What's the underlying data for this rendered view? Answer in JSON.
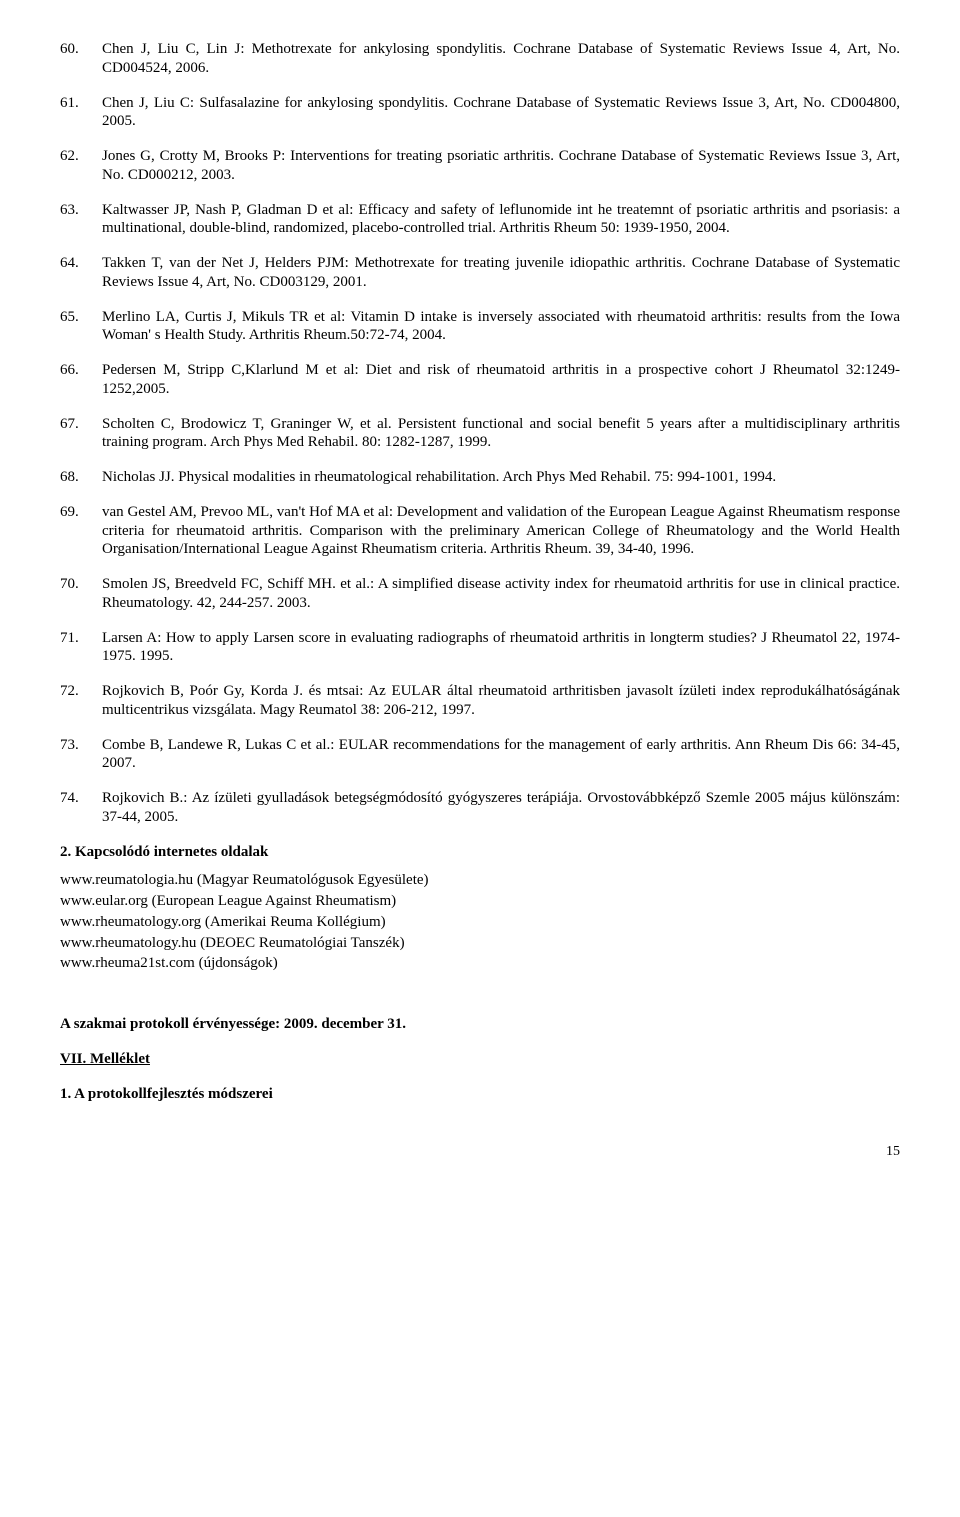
{
  "references": [
    {
      "num": "60.",
      "text": "Chen J, Liu C, Lin J: Methotrexate for ankylosing spondylitis. Cochrane Database of Systematic Reviews Issue 4, Art, No. CD004524, 2006."
    },
    {
      "num": "61.",
      "text": "Chen J, Liu C: Sulfasalazine for ankylosing spondylitis. Cochrane Database of Systematic Reviews Issue 3, Art, No. CD004800, 2005."
    },
    {
      "num": "62.",
      "text": "Jones G, Crotty M, Brooks P: Interventions for treating psoriatic arthritis. Cochrane Database of Systematic Reviews Issue 3, Art, No. CD000212, 2003."
    },
    {
      "num": "63.",
      "text": "Kaltwasser JP, Nash P, Gladman D et al: Efficacy and safety of leflunomide int he treatemnt of psoriatic arthritis and psoriasis: a multinational, double-blind, randomized, placebo-controlled trial. Arthritis Rheum 50: 1939-1950, 2004."
    },
    {
      "num": "64.",
      "text": "Takken T, van der Net J, Helders PJM: Methotrexate for treating juvenile idiopathic arthritis. Cochrane Database of Systematic Reviews Issue 4, Art, No. CD003129, 2001."
    },
    {
      "num": "65.",
      "text": "Merlino LA, Curtis J, Mikuls TR et al: Vitamin D intake is inversely associated with rheumatoid arthritis: results from the Iowa Woman' s Health Study. Arthritis Rheum.50:72-74, 2004."
    },
    {
      "num": "66.",
      "text": "Pedersen M, Stripp C,Klarlund M et al: Diet and  risk of rheumatoid arthritis in a prospective cohort J Rheumatol 32:1249-1252,2005."
    },
    {
      "num": "67.",
      "text": "Scholten C, Brodowicz T, Graninger W, et al. Persistent functional and social benefit 5 years after a multidisciplinary arthritis training program. Arch Phys Med Rehabil. 80: 1282-1287, 1999."
    },
    {
      "num": "68.",
      "text": "Nicholas JJ. Physical modalities in rheumatological rehabilitation. Arch Phys Med Rehabil. 75: 994-1001, 1994."
    },
    {
      "num": "69.",
      "text": "van Gestel AM, Prevoo ML, van't Hof MA et al: Development and validation of the European League Against Rheumatism response criteria for rheumatoid arthritis. Comparison with the preliminary American College of Rheumatology and the World Health Organisation/International League Against Rheumatism criteria. Arthritis Rheum. 39, 34-40, 1996."
    },
    {
      "num": "70.",
      "text": "Smolen JS, Breedveld FC, Schiff MH. et al.: A simplified disease activity index for rheumatoid arthritis for use in clinical practice. Rheumatology. 42, 244-257. 2003."
    },
    {
      "num": "71.",
      "text": "Larsen A: How to apply Larsen score in evaluating radiographs of rheumatoid arthritis in longterm studies? J Rheumatol 22, 1974-1975. 1995."
    },
    {
      "num": "72.",
      "text": "Rojkovich B, Poór Gy, Korda J. és mtsai: Az EULAR által rheumatoid arthritisben javasolt ízületi index reprodukálhatóságának multicentrikus vizsgálata. Magy Reumatol 38: 206-212, 1997."
    },
    {
      "num": "73.",
      "text": "Combe B, Landewe R, Lukas C et al.: EULAR recommendations for the management of early arthritis. Ann Rheum Dis 66: 34-45, 2007."
    },
    {
      "num": "74.",
      "text": "Rojkovich B.: Az ízületi gyulladások betegségmódosító gyógyszeres terápiája. Orvostovábbképző Szemle 2005 május különszám: 37-44, 2005."
    }
  ],
  "section2_title": "2. Kapcsolódó internetes oldalak",
  "links": [
    "www.reumatologia.hu (Magyar Reumatológusok Egyesülete)",
    "www.eular.org (European League Against Rheumatism)",
    "www.rheumatology.org (Amerikai Reuma Kollégium)",
    "www.rheumatology.hu (DEOEC Reumatológiai Tanszék)",
    "www.rheuma21st.com (újdonságok)"
  ],
  "validity_text": "A szakmai protokoll érvényessége: 2009. december 31.",
  "section_vii": "VII. Melléklet",
  "subsection1": "1. A protokollfejlesztés módszerei",
  "page_number": "15"
}
